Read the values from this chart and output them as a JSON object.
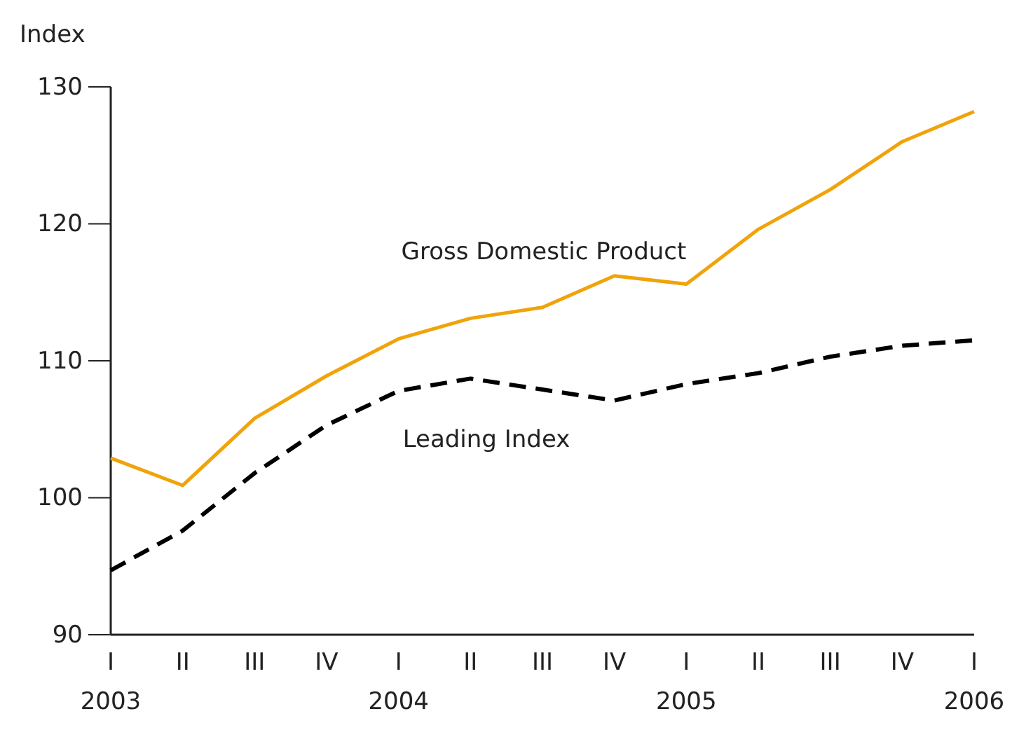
{
  "chart_data": {
    "type": "line",
    "ylabel": "Index",
    "categories": [
      "I\n2003",
      "II",
      "III",
      "IV",
      "I\n2004",
      "II",
      "III",
      "IV",
      "I\n2005",
      "II",
      "III",
      "IV",
      "I\n2006"
    ],
    "ylim": [
      90,
      130
    ],
    "yticks": [
      90,
      100,
      110,
      120,
      130
    ],
    "grid": false,
    "series": [
      {
        "name": "Gross Domestic Product",
        "color": "#f0a30a",
        "line_style": "solid",
        "values": [
          102.9,
          100.9,
          105.8,
          108.9,
          111.6,
          113.1,
          113.9,
          116.2,
          115.6,
          119.6,
          122.5,
          126.0,
          128.2
        ]
      },
      {
        "name": "Leading Index",
        "color": "#000000",
        "line_style": "dashed",
        "values": [
          94.7,
          97.6,
          101.8,
          105.3,
          107.8,
          108.7,
          107.9,
          107.1,
          108.3,
          109.1,
          110.3,
          111.1,
          111.5
        ]
      }
    ]
  }
}
